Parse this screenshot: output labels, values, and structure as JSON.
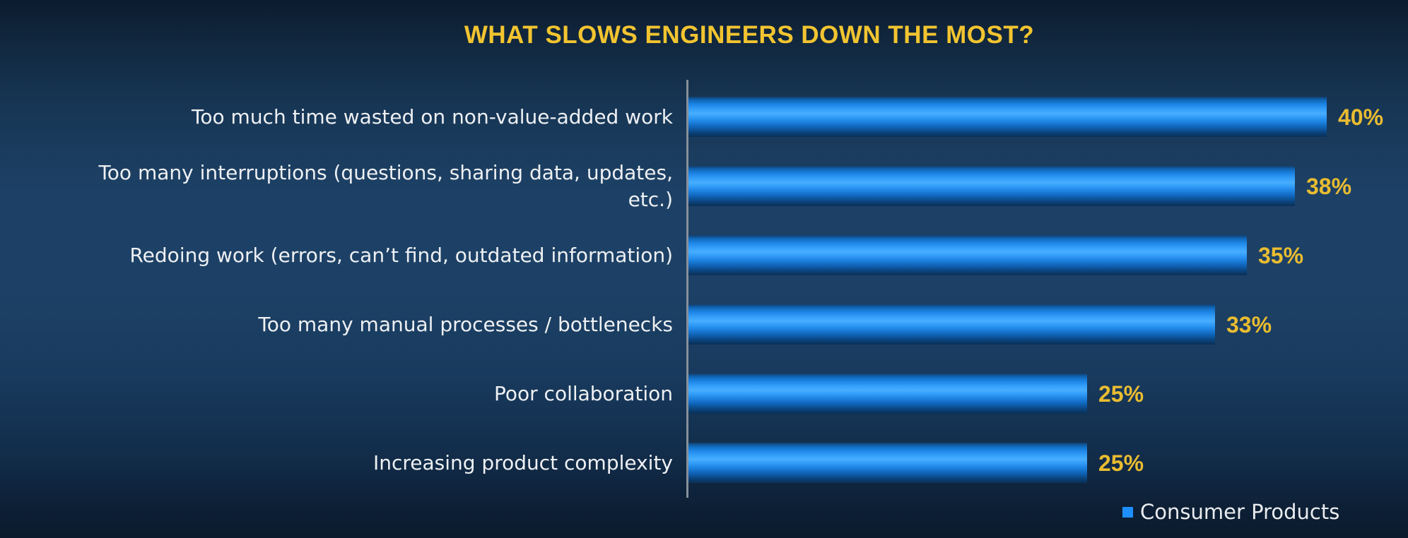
{
  "title": "WHAT SLOWS ENGINEERS DOWN THE MOST?",
  "legend": {
    "label": "Consumer Products"
  },
  "colors": {
    "title_yellow": "#f2c430",
    "value_yellow": "#e9bc31",
    "label_white": "#eef0f3",
    "legend_text": "#e9ebee",
    "legend_blue": "#1e8fff",
    "axis_gray": "#87909a",
    "bar_bright_blue": "#47aeff",
    "bar_dark_blue": "#0a3158",
    "background_mid": "#1d4166",
    "background_edge": "#0c1b2f"
  },
  "chart_data": {
    "type": "bar",
    "orientation": "horizontal",
    "title": "WHAT SLOWS ENGINEERS DOWN THE MOST?",
    "categories": [
      "Too much time wasted on non-value-added work",
      "Too many interruptions (questions, sharing data, updates,\netc.)",
      "Redoing work (errors, can’t find, outdated information)",
      "Too many manual processes / bottlenecks",
      "Poor collaboration",
      "Increasing product complexity"
    ],
    "series": [
      {
        "name": "Consumer Products",
        "values": [
          40,
          38,
          35,
          33,
          25,
          25
        ]
      }
    ],
    "value_labels": [
      "40%",
      "38%",
      "35%",
      "33%",
      "25%",
      "25%"
    ],
    "xlim": [
      0,
      45
    ],
    "grid": false,
    "legend_position": "bottom-right",
    "xlabel": "",
    "ylabel": ""
  }
}
